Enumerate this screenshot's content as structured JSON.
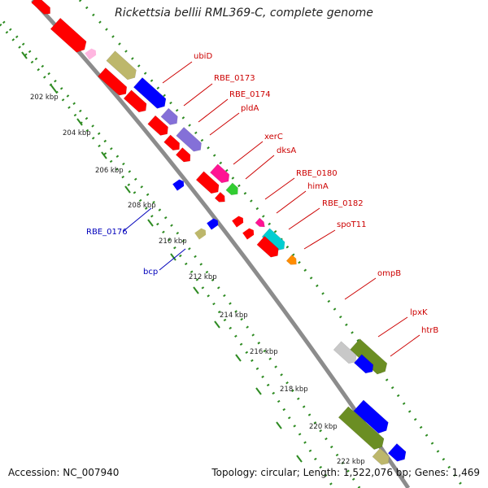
{
  "title": "Rickettsia bellii RML369-C, complete genome",
  "accession": "Accession: NC_007940",
  "topology": "Topology: circular; Length: 1,522,076 bp; Genes: 1,469",
  "colors": {
    "backbone": "#8c8c8c",
    "tick": "#2e8b22",
    "label_forward": "#cc0000",
    "label_reverse": "#0000bb",
    "scale_text": "#222222"
  },
  "scale_ticks": [
    "202 kbp",
    "204 kbp",
    "206 kbp",
    "208 kbp",
    "210 kbp",
    "212 kbp",
    "214 kbp",
    "216 kbp",
    "218 kbp",
    "220 kbp",
    "222 kbp"
  ],
  "labels_forward": [
    "ubiD",
    "RBE_0173",
    "RBE_0174",
    "pldA",
    "xerC",
    "dksA",
    "RBE_0180",
    "himA",
    "RBE_0182",
    "spoT11",
    "ompB",
    "lpxK",
    "htrB"
  ],
  "labels_reverse": [
    "RBE_0176",
    "bcp"
  ],
  "features": [
    {
      "strand": "outer",
      "color": "#ff0000"
    },
    {
      "strand": "outer",
      "color": "#bdb76b"
    },
    {
      "strand": "outer",
      "color": "#0000ff"
    },
    {
      "strand": "outer",
      "color": "#8470d8"
    },
    {
      "strand": "outer",
      "color": "#8470d8"
    },
    {
      "strand": "outer",
      "color": "#ff1493"
    },
    {
      "strand": "outer",
      "color": "#32cd32"
    },
    {
      "strand": "outer",
      "color": "#ff1493"
    },
    {
      "strand": "outer",
      "color": "#00ced1"
    },
    {
      "strand": "outer",
      "color": "#ff8c00"
    },
    {
      "strand": "outer",
      "color": "#6b8e23"
    },
    {
      "strand": "outer",
      "color": "#0000ff"
    },
    {
      "strand": "inner",
      "color": "#ff0000"
    },
    {
      "strand": "inner",
      "color": "#ff0000"
    },
    {
      "strand": "inner",
      "color": "#ff0000"
    },
    {
      "strand": "inner",
      "color": "#ff0000"
    },
    {
      "strand": "inner",
      "color": "#ff0000"
    },
    {
      "strand": "inner",
      "color": "#ff0000"
    },
    {
      "strand": "inner",
      "color": "#ff0000"
    },
    {
      "strand": "inner",
      "color": "#ff0000"
    },
    {
      "strand": "inner",
      "color": "#ff0000"
    },
    {
      "strand": "inner",
      "color": "#c8c8c8"
    },
    {
      "strand": "inner",
      "color": "#0000ff"
    },
    {
      "strand": "inner",
      "color": "#6b8e23"
    },
    {
      "strand": "inner",
      "color": "#0000ff"
    },
    {
      "strand": "inner",
      "color": "#bdb76b"
    }
  ]
}
